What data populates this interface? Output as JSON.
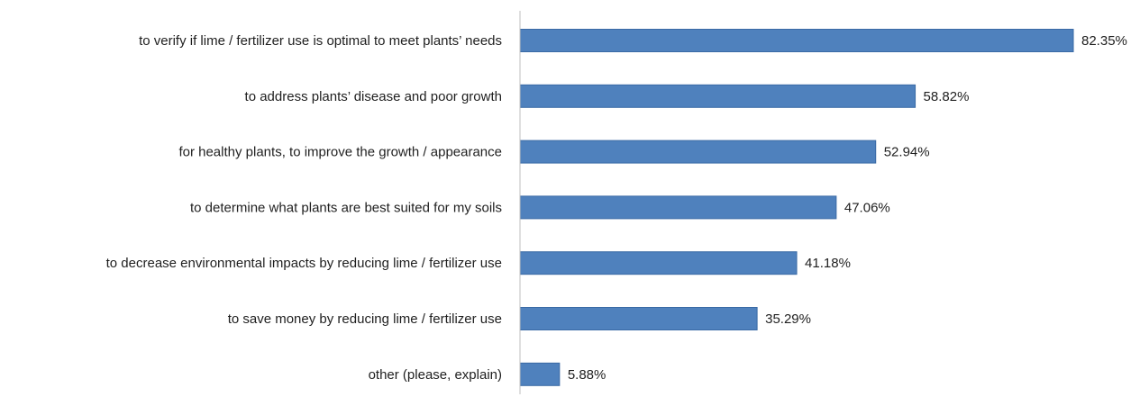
{
  "chart_data": {
    "type": "bar",
    "orientation": "horizontal",
    "title": "",
    "xlabel": "",
    "ylabel": "",
    "categories": [
      "to verify if lime / fertilizer use is optimal to meet plants’ needs",
      "to address plants’ disease and poor growth",
      "for healthy plants, to improve the growth / appearance",
      "to determine what plants are best suited for my soils",
      "to decrease environmental impacts by reducing lime / fertilizer use",
      "to save money by reducing lime / fertilizer use",
      "other (please, explain)"
    ],
    "values": [
      82.35,
      58.82,
      52.94,
      47.06,
      41.18,
      35.29,
      5.88
    ],
    "value_labels": [
      "82.35%",
      "58.82%",
      "52.94%",
      "47.06%",
      "41.18%",
      "35.29%",
      "5.88%"
    ],
    "unit": "%",
    "xlim": [
      0,
      100
    ],
    "grid": false,
    "legend": "none",
    "bar_color": "#4f81bd",
    "bar_edge_color": "#3a6aa5"
  }
}
